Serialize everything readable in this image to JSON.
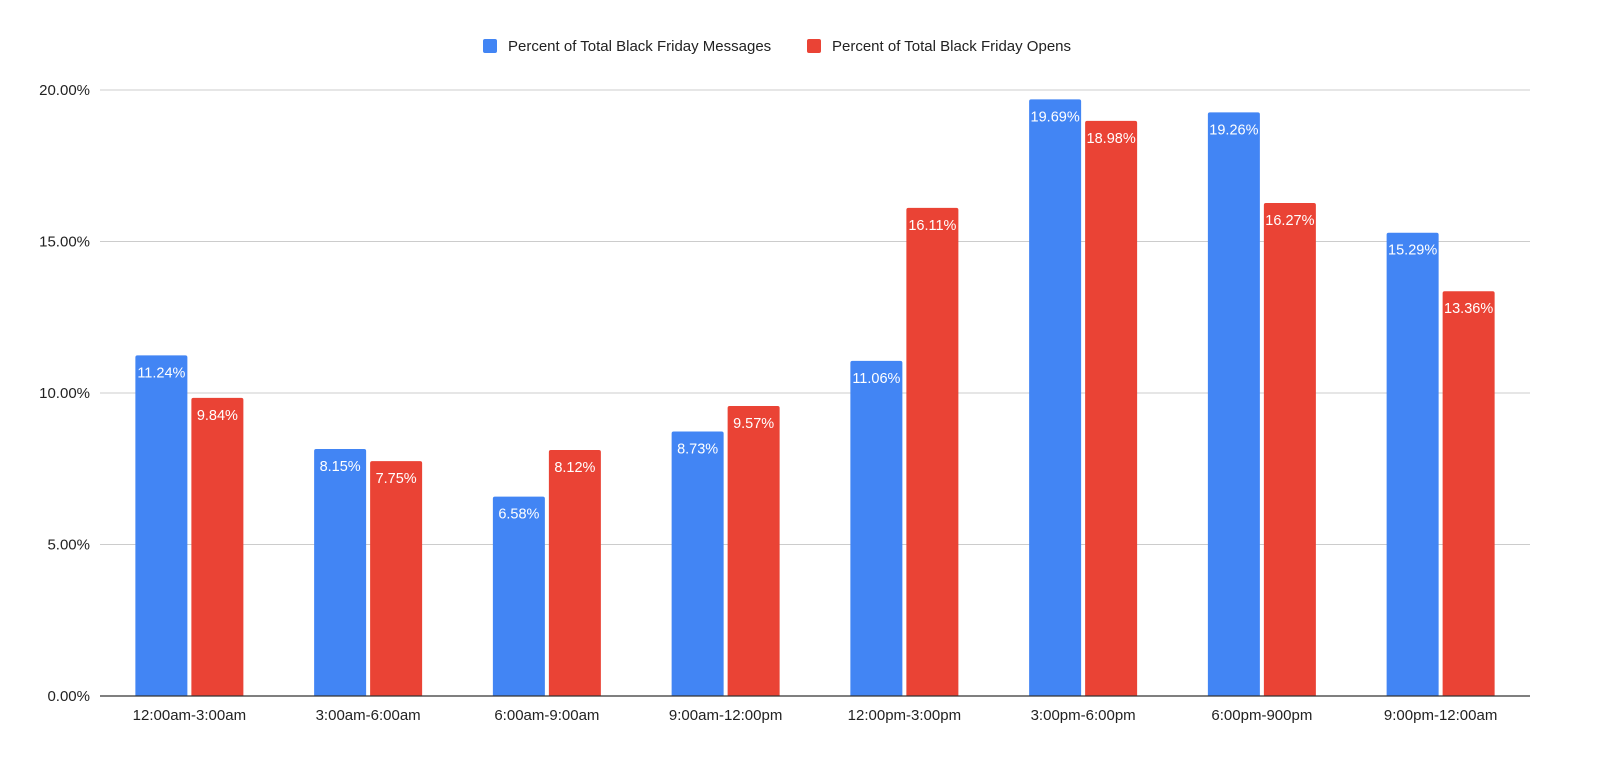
{
  "chart_data": {
    "type": "bar",
    "title": "",
    "xlabel": "",
    "ylabel": "",
    "ylim": [
      0,
      20
    ],
    "y_ticks": [
      0,
      5,
      10,
      15,
      20
    ],
    "y_tick_labels": [
      "0.00%",
      "5.00%",
      "10.00%",
      "15.00%",
      "20.00%"
    ],
    "grid": true,
    "legend_position": "top-center",
    "categories": [
      "12:00am-3:00am",
      "3:00am-6:00am",
      "6:00am-9:00am",
      "9:00am-12:00pm",
      "12:00pm-3:00pm",
      "3:00pm-6:00pm",
      "6:00pm-900pm",
      "9:00pm-12:00am"
    ],
    "series": [
      {
        "name": "Percent of Total Black Friday Messages",
        "color": "#4285f4",
        "values": [
          11.24,
          8.15,
          6.58,
          8.73,
          11.06,
          19.69,
          19.26,
          15.29
        ],
        "labels": [
          "11.24%",
          "8.15%",
          "6.58%",
          "8.73%",
          "11.06%",
          "19.69%",
          "19.26%",
          "15.29%"
        ]
      },
      {
        "name": "Percent of Total Black Friday Opens",
        "color": "#ea4335",
        "values": [
          9.84,
          7.75,
          8.12,
          9.57,
          16.11,
          18.98,
          16.27,
          13.36
        ],
        "labels": [
          "9.84%",
          "7.75%",
          "8.12%",
          "9.57%",
          "16.11%",
          "18.98%",
          "16.27%",
          "13.36%"
        ]
      }
    ]
  }
}
